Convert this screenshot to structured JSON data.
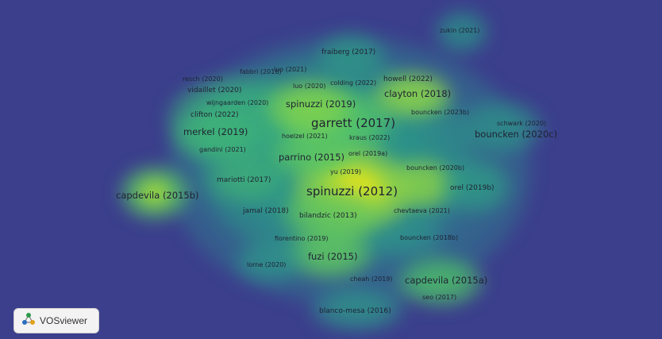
{
  "branding": {
    "logo_text": "VOSviewer"
  },
  "density_map": {
    "labels": [
      {
        "id": "zukin-2021",
        "text": "zukin (2021)"
      },
      {
        "id": "fraiberg-2017",
        "text": "fraiberg (2017)"
      },
      {
        "id": "fabbri-2016",
        "text": "fabbri (2016)"
      },
      {
        "id": "luo-2021",
        "text": "luo (2021)"
      },
      {
        "id": "resch-2020",
        "text": "resch (2020)"
      },
      {
        "id": "colding-2022",
        "text": "colding (2022)"
      },
      {
        "id": "howell-2022",
        "text": "howell (2022)"
      },
      {
        "id": "vidaillet-2020",
        "text": "vidaillet (2020)"
      },
      {
        "id": "luo-2020",
        "text": "luo (2020)"
      },
      {
        "id": "clayton-2018",
        "text": "clayton (2018)"
      },
      {
        "id": "wijngaarden-2020",
        "text": "wijngaarden (2020)"
      },
      {
        "id": "spinuzzi-2019",
        "text": "spinuzzi (2019)"
      },
      {
        "id": "clifton-2022",
        "text": "clifton (2022)"
      },
      {
        "id": "bouncken-2023b",
        "text": "bouncken (2023b)"
      },
      {
        "id": "garrett-2017",
        "text": "garrett (2017)"
      },
      {
        "id": "schwark-2020",
        "text": "schwark (2020)"
      },
      {
        "id": "merkel-2019",
        "text": "merkel (2019)"
      },
      {
        "id": "hoelzel-2021",
        "text": "hoelzel (2021)"
      },
      {
        "id": "kraus-2022",
        "text": "kraus (2022)"
      },
      {
        "id": "bouncken-2020c",
        "text": "bouncken (2020c)"
      },
      {
        "id": "gandini-2021",
        "text": "gandini (2021)"
      },
      {
        "id": "orel-2019a",
        "text": "orel (2019a)"
      },
      {
        "id": "parrino-2015",
        "text": "parrino (2015)"
      },
      {
        "id": "yu-2019",
        "text": "yu (2019)"
      },
      {
        "id": "bouncken-2020b",
        "text": "bouncken (2020b)"
      },
      {
        "id": "mariotti-2017",
        "text": "mariotti (2017)"
      },
      {
        "id": "orel-2019b",
        "text": "orel (2019b)"
      },
      {
        "id": "spinuzzi-2012",
        "text": "spinuzzi (2012)"
      },
      {
        "id": "capdevila-2015b",
        "text": "capdevila (2015b)"
      },
      {
        "id": "jamal-2018",
        "text": "jamal (2018)"
      },
      {
        "id": "bilandzic-2013",
        "text": "bilandzic (2013)"
      },
      {
        "id": "chevtaeva-2021",
        "text": "chevtaeva (2021)"
      },
      {
        "id": "fiorentino-2019",
        "text": "fiorentino (2019)"
      },
      {
        "id": "bouncken-2018b",
        "text": "bouncken (2018b)"
      },
      {
        "id": "fuzi-2015",
        "text": "fuzi (2015)"
      },
      {
        "id": "lorne-2020",
        "text": "lorne (2020)"
      },
      {
        "id": "cheah-2019",
        "text": "cheah (2019)"
      },
      {
        "id": "capdevila-2015a",
        "text": "capdevila (2015a)"
      },
      {
        "id": "seo-2017",
        "text": "seo (2017)"
      },
      {
        "id": "blanco-mesa-2016",
        "text": "blanco-mesa (2016)"
      }
    ]
  }
}
